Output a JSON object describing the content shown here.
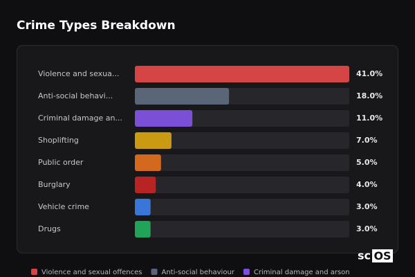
{
  "chart_data": {
    "type": "bar",
    "orientation": "horizontal",
    "title": "Crime Types Breakdown",
    "categories": [
      "Violence and sexua...",
      "Anti-social behavi...",
      "Criminal damage an...",
      "Shoplifting",
      "Public order",
      "Burglary",
      "Vehicle crime",
      "Drugs"
    ],
    "values": [
      41,
      18,
      11,
      7,
      5,
      4,
      3,
      3
    ],
    "value_labels": [
      "41.0%",
      "18.0%",
      "11.0%",
      "7.0%",
      "5.0%",
      "4.0%",
      "3.0%",
      "3.0%"
    ],
    "colors": [
      "#d64545",
      "#5a6577",
      "#7b4fd6",
      "#c99a12",
      "#d2691e",
      "#b82424",
      "#3a76d8",
      "#22a35a"
    ],
    "xlim": [
      0,
      41
    ],
    "legend": [
      "Violence and sexual offences",
      "Anti-social behaviour",
      "Criminal damage and arson"
    ]
  },
  "watermark": {
    "prefix": "sc",
    "boxed": "OS"
  }
}
